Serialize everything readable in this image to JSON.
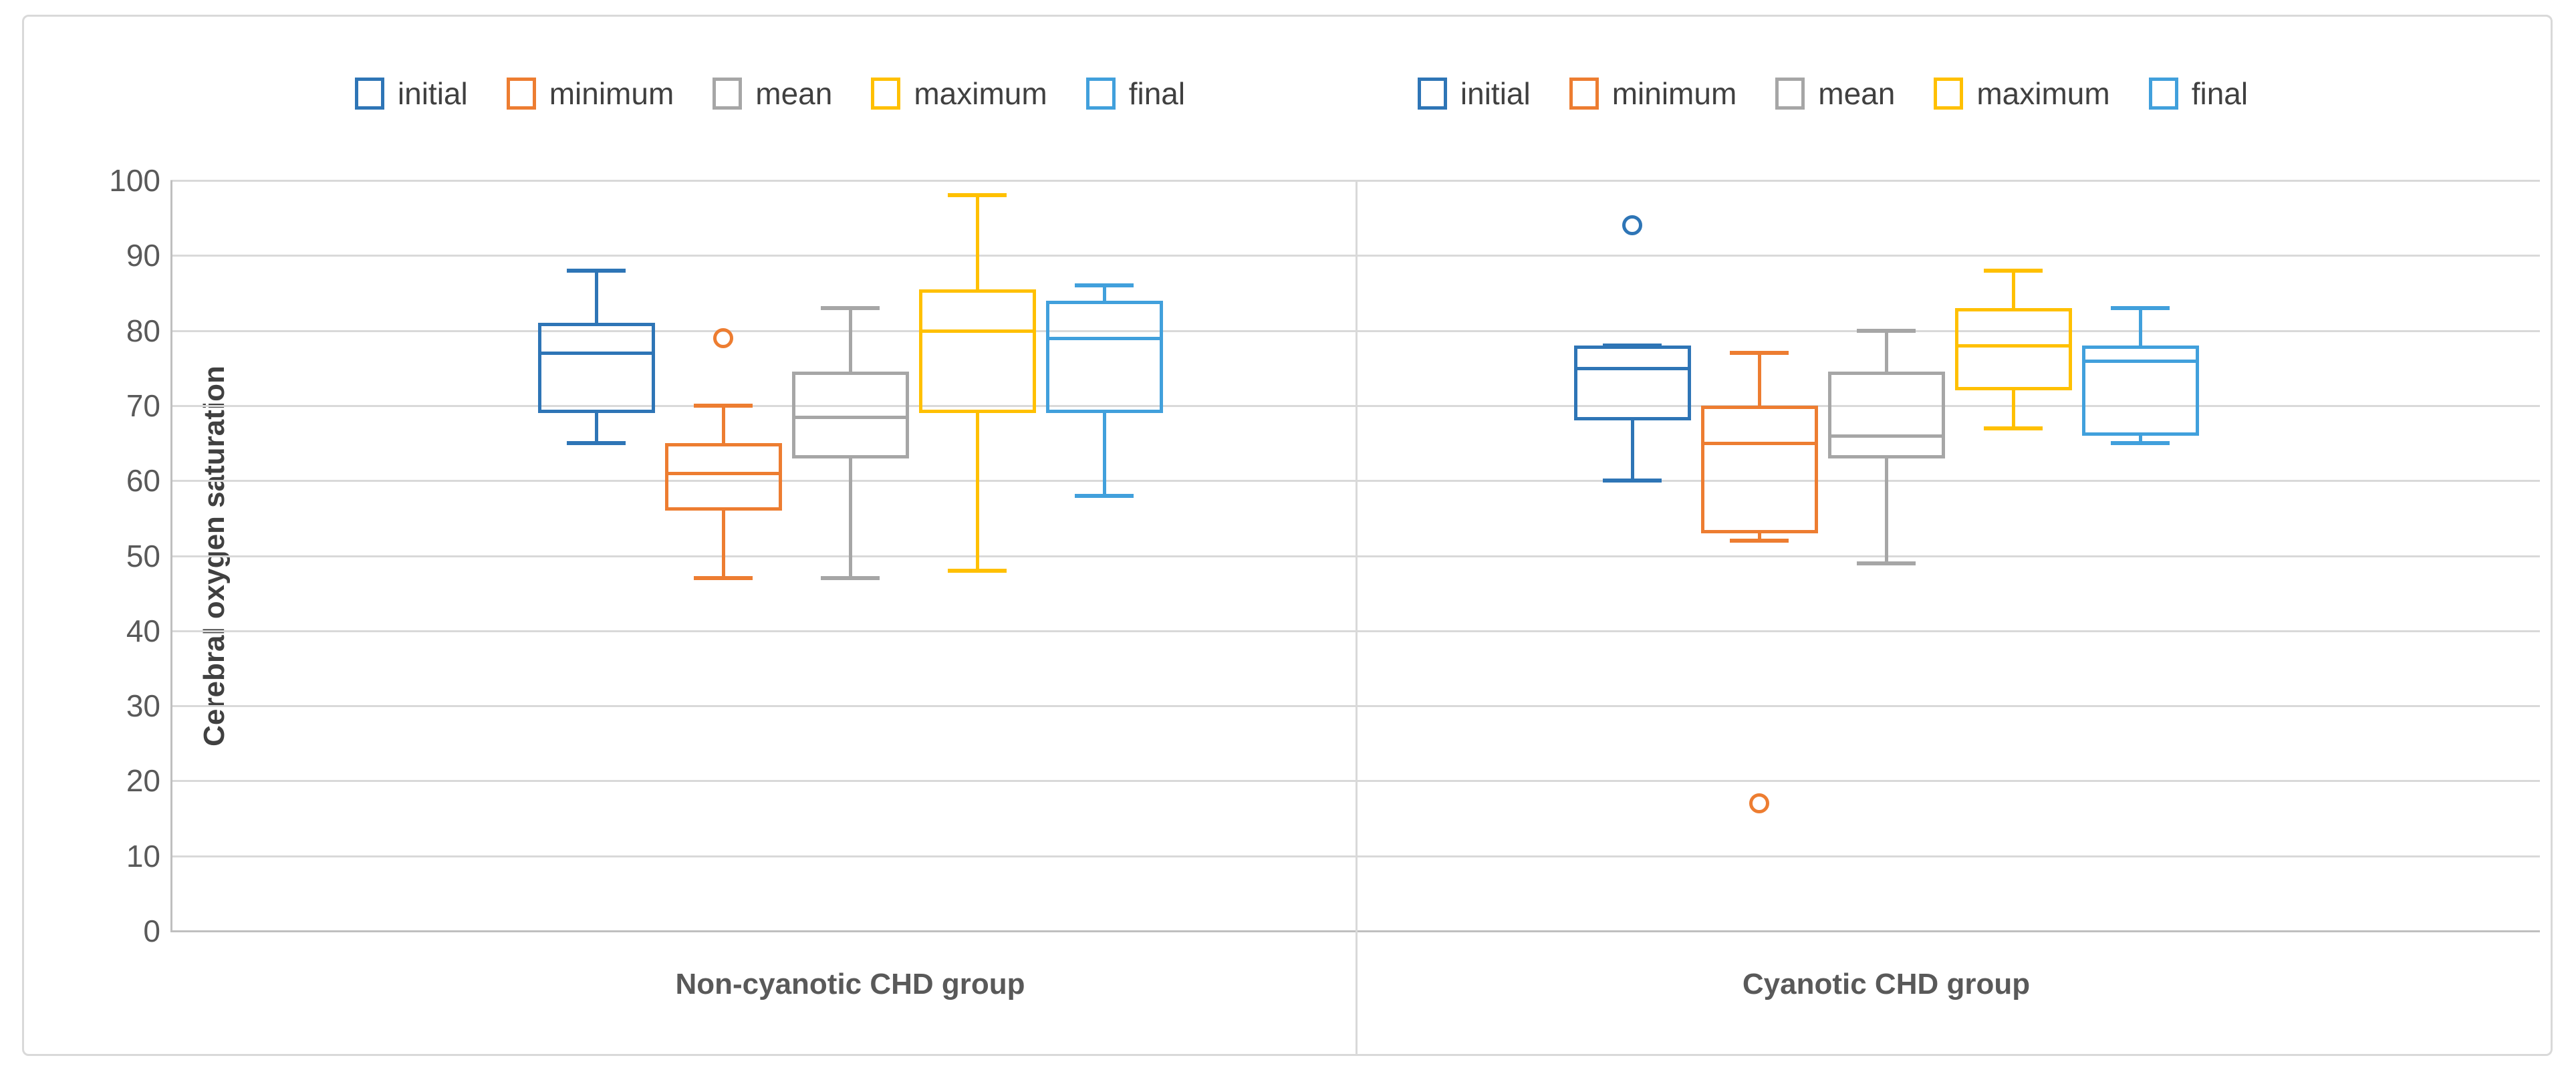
{
  "chart_data": {
    "type": "boxplot",
    "title": "",
    "ylabel": "Cerebral oxygen saturation",
    "xlabel": "",
    "ylim": [
      0,
      100
    ],
    "yticks": [
      0,
      10,
      20,
      30,
      40,
      50,
      60,
      70,
      80,
      90,
      100
    ],
    "grid": "horizontal",
    "legend_position": "top-center-per-group",
    "legend": [
      "initial",
      "minimum",
      "mean",
      "maximum",
      "final"
    ],
    "series_colors": {
      "initial": "#2E75B6",
      "minimum": "#ED7D31",
      "mean": "#A6A6A6",
      "maximum": "#FFC000",
      "final": "#41A0DC"
    },
    "groups": [
      {
        "label": "Non-cyanotic CHD group",
        "boxes": [
          {
            "name": "initial",
            "whisker_low": 65,
            "q1": 69,
            "median": 77,
            "q3": 81,
            "whisker_high": 88,
            "outliers": []
          },
          {
            "name": "minimum",
            "whisker_low": 47,
            "q1": 56,
            "median": 61,
            "q3": 65,
            "whisker_high": 70,
            "outliers": [
              79
            ]
          },
          {
            "name": "mean",
            "whisker_low": 47,
            "q1": 63,
            "median": 68.5,
            "q3": 74.5,
            "whisker_high": 83,
            "outliers": []
          },
          {
            "name": "maximum",
            "whisker_low": 48,
            "q1": 69,
            "median": 80,
            "q3": 85.5,
            "whisker_high": 98,
            "outliers": []
          },
          {
            "name": "final",
            "whisker_low": 58,
            "q1": 69,
            "median": 79,
            "q3": 84,
            "whisker_high": 86,
            "outliers": []
          }
        ]
      },
      {
        "label": "Cyanotic CHD group",
        "boxes": [
          {
            "name": "initial",
            "whisker_low": 60,
            "q1": 68,
            "median": 75,
            "q3": 78,
            "whisker_high": 78,
            "outliers": [
              94
            ]
          },
          {
            "name": "minimum",
            "whisker_low": 52,
            "q1": 53,
            "median": 65,
            "q3": 70,
            "whisker_high": 77,
            "outliers": [
              17
            ]
          },
          {
            "name": "mean",
            "whisker_low": 49,
            "q1": 63,
            "median": 66,
            "q3": 74.5,
            "whisker_high": 80,
            "outliers": []
          },
          {
            "name": "maximum",
            "whisker_low": 67,
            "q1": 72,
            "median": 78,
            "q3": 83,
            "whisker_high": 88,
            "outliers": []
          },
          {
            "name": "final",
            "whisker_low": 65,
            "q1": 66,
            "median": 76,
            "q3": 78,
            "whisker_high": 83,
            "outliers": []
          }
        ]
      }
    ],
    "colors": {
      "gridline": "#D9D9D9",
      "axis_line": "#BFBFBF",
      "tick_text": "#595959",
      "label_text": "#595959",
      "title_text": "#404040"
    }
  }
}
